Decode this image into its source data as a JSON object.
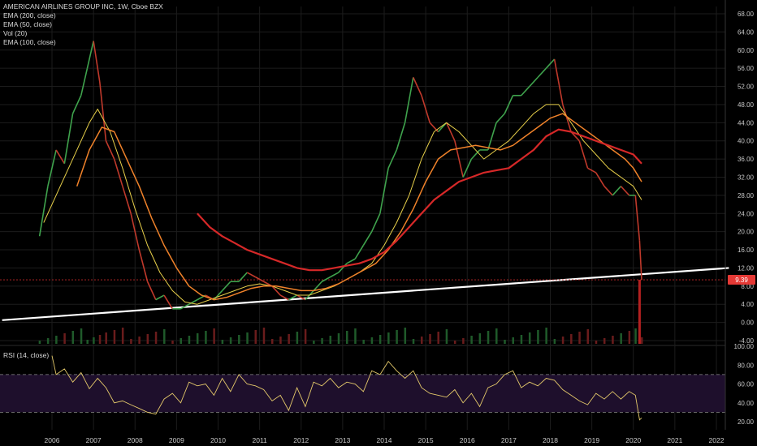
{
  "chart_data": {
    "type": "line",
    "title": "AMERICAN AIRLINES GROUP INC, 1W, Cboe BZX",
    "indicators": [
      "EMA (200, close)",
      "EMA (50, close)",
      "Vol (20)",
      "EMA (100, close)"
    ],
    "rsi_label": "RSI (14, close)",
    "last_price_label": "9.39",
    "last_price": 9.39,
    "price_axis": {
      "min": -4,
      "max": 68,
      "ticks": [
        "68.00",
        "64.00",
        "60.00",
        "56.00",
        "52.00",
        "48.00",
        "44.00",
        "40.00",
        "36.00",
        "32.00",
        "28.00",
        "24.00",
        "20.00",
        "16.00",
        "12.00",
        "8.00",
        "4.00",
        "0.00",
        "-4.00"
      ]
    },
    "rsi_axis": {
      "min": 15,
      "max": 100,
      "ticks": [
        "100.00",
        "80.00",
        "60.00",
        "40.00",
        "20.00"
      ],
      "bands": [
        30,
        70
      ]
    },
    "x_axis": {
      "ticks": [
        "2006",
        "2007",
        "2008",
        "2009",
        "2010",
        "2011",
        "2012",
        "2013",
        "2014",
        "2015",
        "2016",
        "2017",
        "2018",
        "2019",
        "2020",
        "2021",
        "2022"
      ]
    },
    "price_series": {
      "x": [
        2005.7,
        2005.9,
        2006.1,
        2006.3,
        2006.5,
        2006.7,
        2006.85,
        2007.0,
        2007.15,
        2007.3,
        2007.5,
        2007.7,
        2007.9,
        2008.1,
        2008.3,
        2008.5,
        2008.7,
        2008.9,
        2009.1,
        2009.3,
        2009.5,
        2009.7,
        2009.9,
        2010.1,
        2010.3,
        2010.5,
        2010.7,
        2010.9,
        2011.1,
        2011.3,
        2011.5,
        2011.7,
        2011.9,
        2012.1,
        2012.3,
        2012.5,
        2012.7,
        2012.9,
        2013.1,
        2013.3,
        2013.5,
        2013.7,
        2013.9,
        2014.1,
        2014.3,
        2014.5,
        2014.7,
        2014.9,
        2015.1,
        2015.3,
        2015.5,
        2015.7,
        2015.9,
        2016.1,
        2016.3,
        2016.5,
        2016.7,
        2016.9,
        2017.1,
        2017.3,
        2017.5,
        2017.7,
        2017.9,
        2018.1,
        2018.3,
        2018.5,
        2018.7,
        2018.9,
        2019.1,
        2019.3,
        2019.5,
        2019.7,
        2019.9,
        2020.05,
        2020.15,
        2020.2
      ],
      "y": [
        19,
        30,
        38,
        35,
        46,
        50,
        56,
        62,
        53,
        40,
        36,
        30,
        24,
        16,
        9,
        5,
        6,
        3,
        3,
        4,
        5,
        6,
        5,
        7,
        9,
        9,
        11,
        10,
        9,
        8,
        6,
        5,
        6,
        5,
        7,
        9,
        10,
        11,
        13,
        14,
        17,
        20,
        24,
        34,
        38,
        44,
        54,
        50,
        44,
        42,
        44,
        40,
        32,
        36,
        38,
        38,
        44,
        46,
        50,
        50,
        52,
        54,
        56,
        58,
        48,
        42,
        40,
        34,
        33,
        30,
        28,
        30,
        28,
        28,
        18,
        9.39
      ]
    },
    "ema50": {
      "x": [
        2005.8,
        2006.2,
        2006.6,
        2006.9,
        2007.1,
        2007.4,
        2007.7,
        2008.0,
        2008.3,
        2008.6,
        2008.9,
        2009.2,
        2009.5,
        2009.8,
        2010.1,
        2010.4,
        2010.7,
        2011.0,
        2011.3,
        2011.6,
        2011.9,
        2012.2,
        2012.5,
        2012.8,
        2013.1,
        2013.4,
        2013.7,
        2014.0,
        2014.3,
        2014.6,
        2014.9,
        2015.2,
        2015.5,
        2015.8,
        2016.1,
        2016.4,
        2016.7,
        2017.0,
        2017.3,
        2017.6,
        2017.9,
        2018.2,
        2018.5,
        2018.8,
        2019.1,
        2019.4,
        2019.7,
        2020.0,
        2020.2
      ],
      "y": [
        22,
        30,
        38,
        44,
        47,
        42,
        34,
        25,
        17,
        11,
        7,
        4.5,
        4,
        5,
        6,
        7,
        8,
        8.5,
        8,
        7,
        6,
        6,
        7,
        8,
        9.5,
        11,
        13,
        17,
        22,
        28,
        36,
        42,
        44,
        42,
        39,
        36,
        38,
        40,
        43,
        46,
        48,
        48,
        44,
        40,
        37,
        34,
        32,
        30,
        27
      ]
    },
    "ema100": {
      "x": [
        2006.6,
        2006.9,
        2007.2,
        2007.5,
        2007.8,
        2008.1,
        2008.4,
        2008.7,
        2009.0,
        2009.3,
        2009.6,
        2009.9,
        2010.2,
        2010.5,
        2010.8,
        2011.1,
        2011.4,
        2011.7,
        2012.0,
        2012.3,
        2012.6,
        2012.9,
        2013.2,
        2013.5,
        2013.8,
        2014.1,
        2014.4,
        2014.7,
        2015.0,
        2015.3,
        2015.6,
        2015.9,
        2016.2,
        2016.5,
        2016.8,
        2017.1,
        2017.4,
        2017.7,
        2018.0,
        2018.3,
        2018.6,
        2018.9,
        2019.2,
        2019.5,
        2019.8,
        2020.0,
        2020.2
      ],
      "y": [
        30,
        38,
        43,
        42,
        36,
        30,
        23,
        17,
        12,
        8,
        6,
        5,
        5.5,
        6.5,
        7.5,
        8,
        8,
        7.5,
        7,
        7,
        7.5,
        8.5,
        10,
        11.5,
        13,
        16,
        20,
        25,
        31,
        36,
        38,
        38.5,
        39,
        38.5,
        38,
        39,
        41,
        43,
        45,
        46,
        44,
        42,
        40,
        38,
        36,
        34,
        31
      ]
    },
    "ema200": {
      "x": [
        2009.5,
        2009.8,
        2010.1,
        2010.4,
        2010.7,
        2011.0,
        2011.3,
        2011.6,
        2011.9,
        2012.2,
        2012.5,
        2012.8,
        2013.1,
        2013.4,
        2013.7,
        2014.0,
        2014.3,
        2014.6,
        2014.9,
        2015.2,
        2015.5,
        2015.8,
        2016.1,
        2016.4,
        2016.7,
        2017.0,
        2017.3,
        2017.6,
        2017.9,
        2018.2,
        2018.5,
        2018.8,
        2019.1,
        2019.4,
        2019.7,
        2020.0,
        2020.2
      ],
      "y": [
        24,
        21,
        19,
        17.5,
        16,
        15,
        14,
        13,
        12,
        11.5,
        11.5,
        12,
        12.5,
        13,
        14,
        15.5,
        18,
        21,
        24,
        27,
        29,
        31,
        32,
        33,
        33.5,
        34,
        36,
        38,
        41,
        42.5,
        42,
        41,
        40,
        39,
        38,
        37,
        35
      ]
    },
    "trendline": {
      "x": [
        2004.8,
        2022.3
      ],
      "y": [
        0.5,
        12
      ]
    },
    "last_price_line": 9.39,
    "rsi_series": {
      "x": [
        2006.0,
        2006.1,
        2006.3,
        2006.5,
        2006.7,
        2006.9,
        2007.1,
        2007.3,
        2007.5,
        2007.7,
        2007.9,
        2008.1,
        2008.3,
        2008.5,
        2008.7,
        2008.9,
        2009.1,
        2009.3,
        2009.5,
        2009.7,
        2009.9,
        2010.1,
        2010.3,
        2010.5,
        2010.7,
        2010.9,
        2011.1,
        2011.3,
        2011.5,
        2011.7,
        2011.9,
        2012.1,
        2012.3,
        2012.5,
        2012.7,
        2012.9,
        2013.1,
        2013.3,
        2013.5,
        2013.7,
        2013.9,
        2014.1,
        2014.3,
        2014.5,
        2014.7,
        2014.9,
        2015.1,
        2015.3,
        2015.5,
        2015.7,
        2015.9,
        2016.1,
        2016.3,
        2016.5,
        2016.7,
        2016.9,
        2017.1,
        2017.3,
        2017.5,
        2017.7,
        2017.9,
        2018.1,
        2018.3,
        2018.5,
        2018.7,
        2018.9,
        2019.1,
        2019.3,
        2019.5,
        2019.7,
        2019.9,
        2020.05,
        2020.15,
        2020.2
      ],
      "y": [
        90,
        70,
        76,
        62,
        72,
        55,
        66,
        56,
        40,
        42,
        38,
        34,
        30,
        28,
        44,
        50,
        40,
        62,
        58,
        60,
        48,
        66,
        52,
        70,
        60,
        58,
        54,
        42,
        48,
        32,
        56,
        36,
        62,
        58,
        66,
        56,
        62,
        60,
        52,
        74,
        70,
        84,
        74,
        66,
        74,
        56,
        50,
        48,
        46,
        54,
        40,
        50,
        36,
        56,
        60,
        70,
        74,
        56,
        62,
        58,
        66,
        64,
        54,
        48,
        42,
        38,
        50,
        44,
        52,
        44,
        52,
        48,
        22,
        24
      ]
    }
  }
}
